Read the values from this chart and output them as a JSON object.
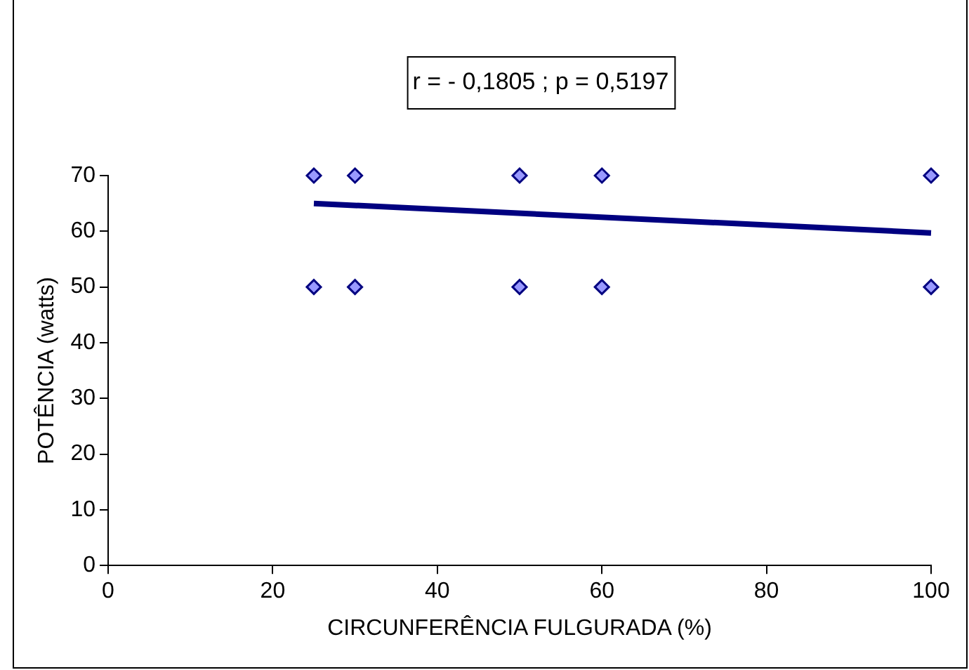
{
  "chart_data": {
    "type": "scatter",
    "xlabel": "CIRCUNFERÊNCIA FULGURADA (%)",
    "ylabel": "POTÊNCIA (watts)",
    "annotations": [
      "r = - 0,1805 ; p = 0,5197"
    ],
    "xlim": [
      0,
      100
    ],
    "xticks": [
      0,
      20,
      40,
      60,
      80,
      100
    ],
    "ylim": [
      0,
      70
    ],
    "yticks": [
      0,
      10,
      20,
      30,
      40,
      50,
      60,
      70
    ],
    "grid": false,
    "legend": false,
    "marker": "diamond",
    "series": [
      {
        "color": "#9999ff",
        "x": [
          25,
          25,
          30,
          30,
          50,
          50,
          60,
          60,
          100,
          100
        ],
        "values": [
          70,
          50,
          70,
          50,
          70,
          50,
          70,
          50,
          70,
          50
        ]
      },
      {
        "type": "line",
        "color": "#000080",
        "x": [
          25,
          100
        ],
        "values": [
          65,
          59.7
        ],
        "marker": "none"
      }
    ]
  }
}
